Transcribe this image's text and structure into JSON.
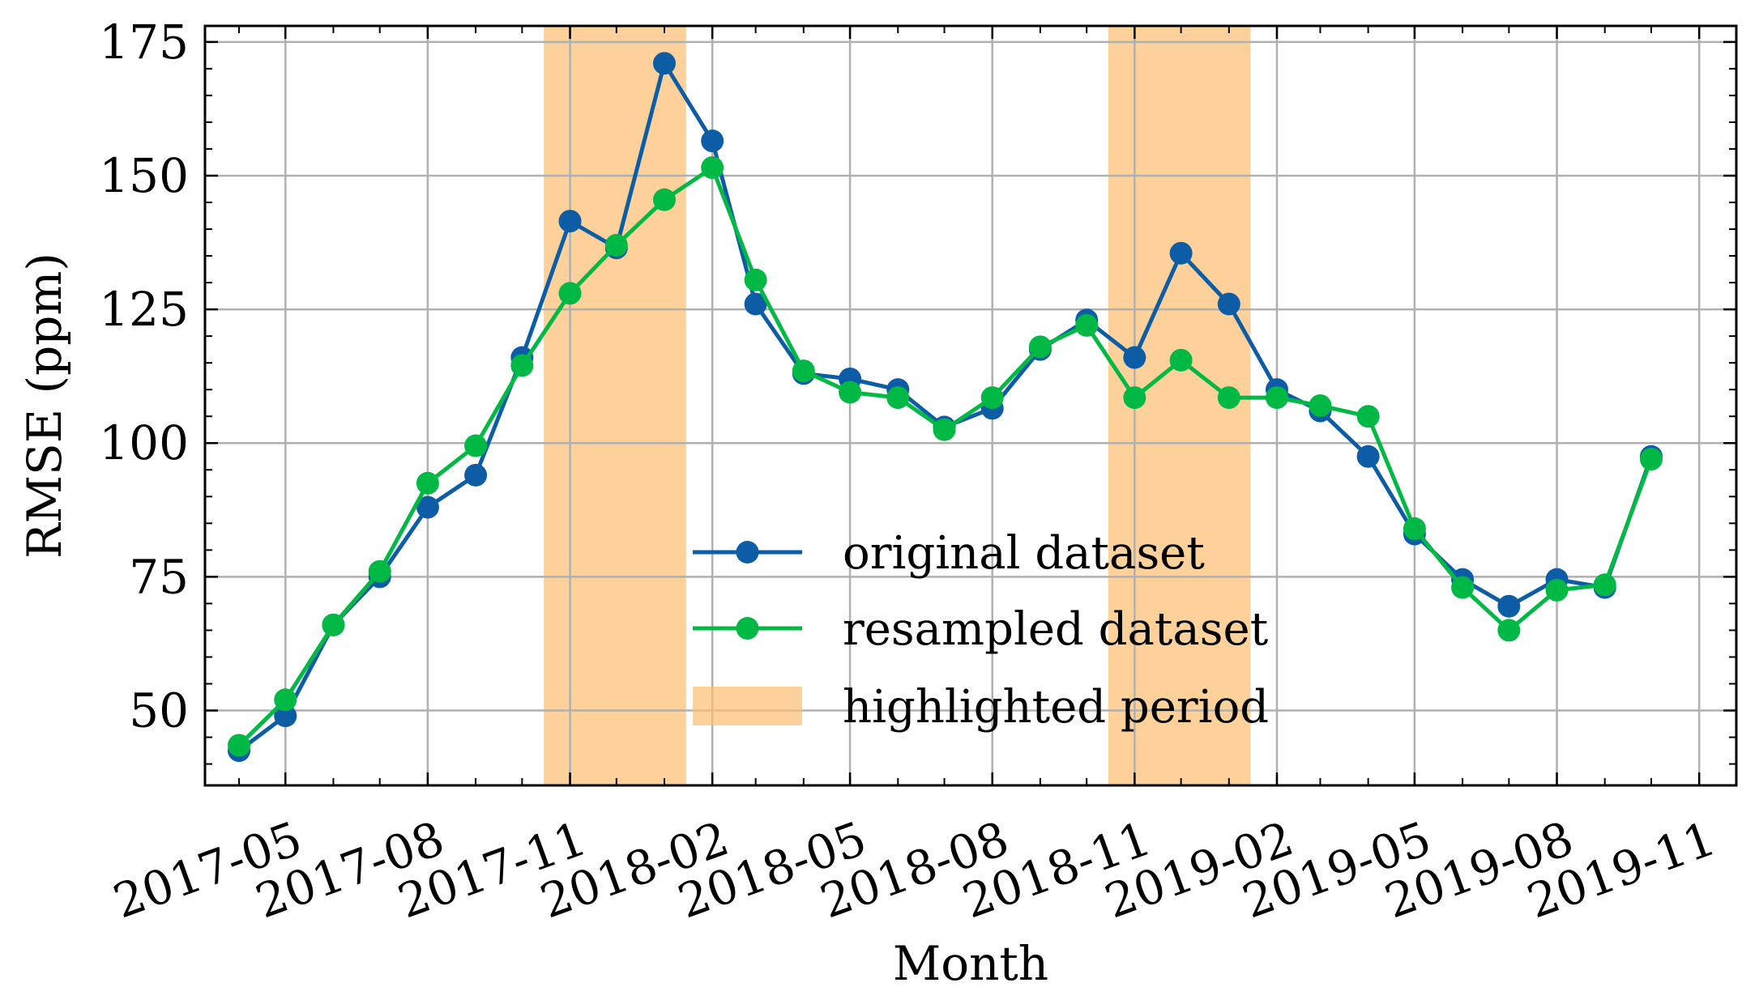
{
  "chart_data": {
    "type": "line",
    "xlabel": "Month",
    "ylabel": "RMSE (ppm)",
    "x": [
      "2017-04",
      "2017-05",
      "2017-06",
      "2017-07",
      "2017-08",
      "2017-09",
      "2017-10",
      "2017-11",
      "2017-12",
      "2018-01",
      "2018-02",
      "2018-03",
      "2018-04",
      "2018-05",
      "2018-06",
      "2018-07",
      "2018-08",
      "2018-09",
      "2018-10",
      "2018-11",
      "2018-12",
      "2019-01",
      "2019-02",
      "2019-03",
      "2019-04",
      "2019-05",
      "2019-06",
      "2019-07",
      "2019-08",
      "2019-09",
      "2019-10"
    ],
    "x_ticks": [
      "2017-05",
      "2017-08",
      "2017-11",
      "2018-02",
      "2018-05",
      "2018-08",
      "2018-11",
      "2019-02",
      "2019-05",
      "2019-08",
      "2019-11"
    ],
    "xlim": [
      "2017-03-10",
      "2019-11-25"
    ],
    "ylim": [
      36,
      178
    ],
    "y_ticks": [
      50,
      75,
      100,
      125,
      150,
      175
    ],
    "grid": true,
    "legend_position": "lower-center",
    "series": [
      {
        "name": "original dataset",
        "color": "#0C5DA5",
        "values": [
          42.5,
          49.0,
          66.0,
          75.0,
          88.0,
          94.0,
          116.0,
          141.5,
          136.5,
          171.0,
          156.5,
          126.0,
          113.0,
          112.0,
          110.0,
          103.0,
          106.5,
          117.5,
          123.0,
          116.0,
          135.5,
          126.0,
          110.0,
          106.0,
          97.5,
          83.0,
          74.5,
          69.5,
          74.5,
          73.0,
          97.5
        ]
      },
      {
        "name": "resampled dataset",
        "color": "#00B945",
        "values": [
          43.5,
          52.0,
          66.0,
          76.0,
          92.5,
          99.5,
          114.5,
          128.0,
          137.0,
          145.5,
          151.5,
          130.5,
          113.5,
          109.5,
          108.5,
          102.5,
          108.5,
          118.0,
          122.0,
          108.5,
          115.5,
          108.5,
          108.5,
          107.0,
          105.0,
          84.0,
          73.0,
          65.0,
          72.5,
          73.5,
          97.0
        ]
      }
    ],
    "highlight_periods": [
      {
        "start": "2017-10-15",
        "end": "2018-01-15",
        "color": "#FCBE6E"
      },
      {
        "start": "2018-10-15",
        "end": "2019-01-15",
        "color": "#FCBE6E"
      }
    ],
    "highlight_label": "highlighted period"
  }
}
